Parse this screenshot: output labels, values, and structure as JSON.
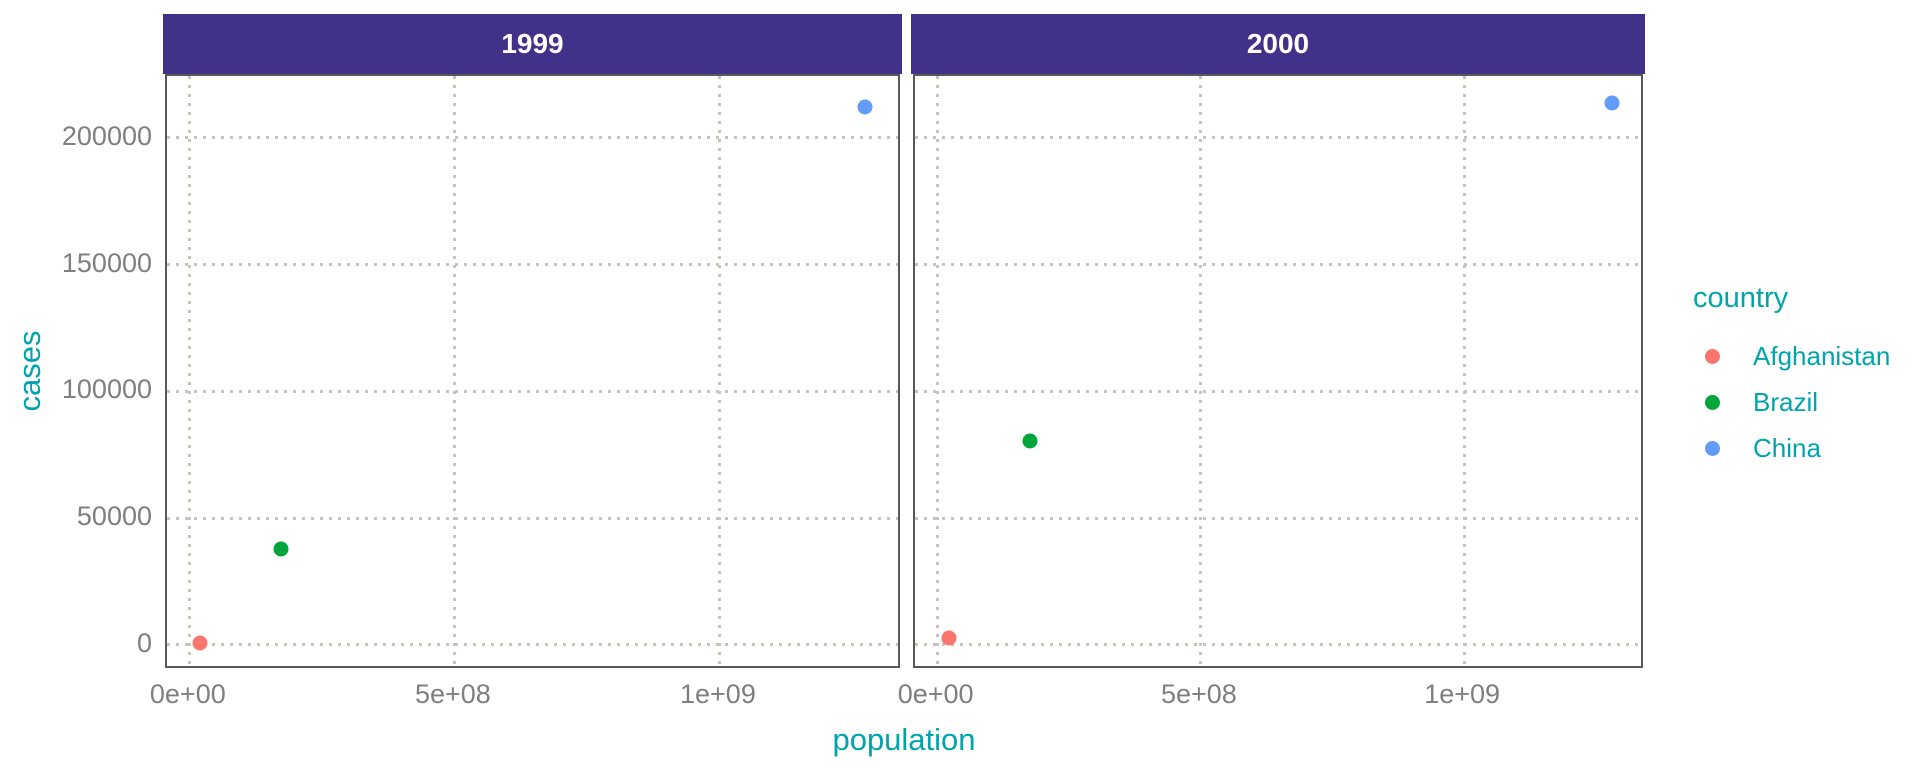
{
  "chart_data": {
    "type": "scatter",
    "title": "",
    "xlabel": "population",
    "ylabel": "cases",
    "legend_title": "country",
    "legend_position": "right",
    "grid_style": "dotted",
    "facet_variable_values": [
      "1999",
      "2000"
    ],
    "x_tick_labels": [
      "0e+00",
      "5e+08",
      "1e+09"
    ],
    "x_tick_values": [
      0,
      500000000,
      1000000000
    ],
    "y_tick_labels": [
      "0",
      "50000",
      "100000",
      "150000",
      "200000"
    ],
    "y_tick_values": [
      0,
      50000,
      100000,
      150000,
      200000
    ],
    "xlim": [
      -43035005,
      1343450659
    ],
    "ylim": [
      -9906,
      224417
    ],
    "series": [
      {
        "name": "Afghanistan",
        "color": "#F8766D",
        "points": [
          {
            "facet": "1999",
            "population": 19987071,
            "cases": 745
          },
          {
            "facet": "2000",
            "population": 20595360,
            "cases": 2666
          }
        ]
      },
      {
        "name": "Brazil",
        "color": "#00A63C",
        "points": [
          {
            "facet": "1999",
            "population": 172006362,
            "cases": 37737
          },
          {
            "facet": "2000",
            "population": 174504898,
            "cases": 80488
          }
        ]
      },
      {
        "name": "China",
        "color": "#639CF8",
        "points": [
          {
            "facet": "1999",
            "population": 1272915272,
            "cases": 212258
          },
          {
            "facet": "2000",
            "population": 1280428583,
            "cases": 213766
          }
        ]
      }
    ]
  },
  "theme": {
    "strip_background": "#413189",
    "strip_text": "#FFFFFF",
    "axis_text": "#7F7F7F",
    "axis_title": "#00A5AC",
    "gridline": "#C8C4BA",
    "panel_border": "#595959",
    "background": "#FFFFFF"
  }
}
